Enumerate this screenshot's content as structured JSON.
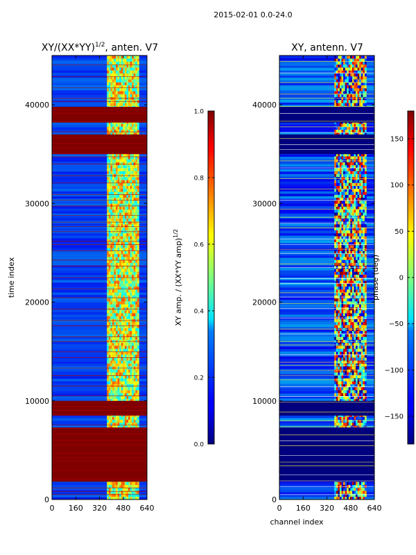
{
  "suptitle": "2015-02-01 0.0-24.0",
  "chart_data": [
    {
      "type": "heatmap",
      "title_main": "XY/(XX*YY)",
      "title_sup": "1/2",
      "title_rest": ", anten. V7",
      "xlabel": "",
      "ylabel": "time index",
      "xlim": [
        0,
        640
      ],
      "ylim": [
        0,
        45000
      ],
      "xticks": [
        0,
        160,
        320,
        480,
        640
      ],
      "yticks": [
        0,
        10000,
        20000,
        30000,
        40000
      ],
      "colorbar": {
        "label_main": "XY amp. / (XX*YY amp)",
        "label_sup": "1/2",
        "range": [
          0.0,
          1.0
        ],
        "ticks": [
          0.0,
          0.2,
          0.4,
          0.6,
          0.8,
          1.0
        ],
        "tick_labels": [
          "0.0",
          "0.2",
          "0.4",
          "0.6",
          "0.8",
          "1.0"
        ]
      }
    },
    {
      "type": "heatmap",
      "title_main": "XY, antenn. V7",
      "title_sup": "",
      "title_rest": "",
      "xlabel": "channel index",
      "ylabel": "",
      "xlim": [
        0,
        640
      ],
      "ylim": [
        0,
        45000
      ],
      "xticks": [
        0,
        160,
        320,
        480,
        640
      ],
      "yticks": [
        0,
        10000,
        20000,
        30000,
        40000
      ],
      "colorbar": {
        "label_main": "phase (deg)",
        "label_sup": "",
        "range": [
          -180,
          180
        ],
        "ticks": [
          -150,
          -100,
          -50,
          0,
          50,
          100,
          150
        ],
        "tick_labels": [
          "−150",
          "−100",
          "−50",
          "0",
          "50",
          "100",
          "150"
        ]
      }
    }
  ]
}
